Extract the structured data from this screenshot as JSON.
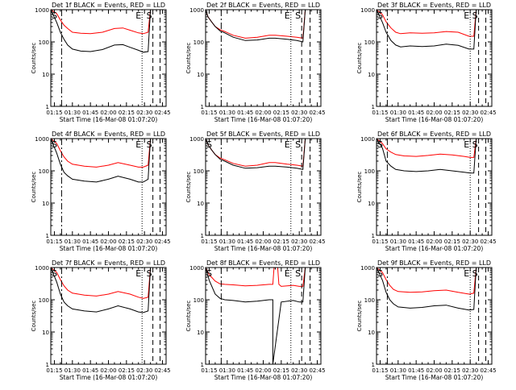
{
  "figure": {
    "background": "#ffffff",
    "axis_color": "#000000"
  },
  "shared": {
    "xlabel": "Start Time (16-Mar-08 01:07:20)",
    "ylabel": "Counts/sec",
    "x_tick_labels": [
      "01:15",
      "01:30",
      "01:45",
      "02:00",
      "02:15",
      "02:30",
      "02:45"
    ],
    "y_tick_labels": [
      "1",
      "10",
      "100",
      "1000"
    ],
    "x_range": [
      "01:12",
      "02:48"
    ],
    "y_range": [
      1,
      1000
    ],
    "y_scale": "log",
    "grid": false,
    "series_colors": {
      "Events": "#000000",
      "LLD": "#ff0000"
    },
    "marker_labels": [
      "S",
      "E",
      "S"
    ]
  },
  "chart_data": [
    {
      "type": "line",
      "title": "Det 1f BLACK = Events, RED = LLD",
      "series": [
        {
          "name": "LLD",
          "color": "#ff0000",
          "x": [
            "01:12",
            "01:17",
            "01:20",
            "01:23",
            "01:26",
            "01:30",
            "01:37",
            "01:45",
            "01:55",
            "02:05",
            "02:12",
            "02:18",
            "02:25",
            "02:29",
            "02:33",
            "02:35"
          ],
          "values": [
            1000,
            750,
            480,
            330,
            260,
            200,
            185,
            180,
            200,
            260,
            270,
            230,
            190,
            180,
            200,
            1000
          ]
        },
        {
          "name": "Events",
          "color": "#000000",
          "x": [
            "01:12",
            "01:17",
            "01:20",
            "01:23",
            "01:26",
            "01:30",
            "01:37",
            "01:45",
            "01:55",
            "02:05",
            "02:12",
            "02:18",
            "02:25",
            "02:29",
            "02:33",
            "02:35"
          ],
          "values": [
            1000,
            400,
            200,
            120,
            80,
            60,
            52,
            50,
            58,
            80,
            82,
            68,
            55,
            48,
            50,
            1000
          ]
        }
      ]
    },
    {
      "type": "line",
      "title": "Det 2f BLACK = Events, RED = LLD",
      "series": [
        {
          "name": "LLD",
          "color": "#ff0000",
          "x": [
            "01:12",
            "01:14",
            "01:17",
            "01:20",
            "01:24",
            "01:28",
            "01:35",
            "01:45",
            "01:55",
            "02:05",
            "02:10",
            "02:20",
            "02:28",
            "02:33",
            "02:35"
          ],
          "values": [
            1000,
            600,
            420,
            300,
            240,
            210,
            160,
            130,
            140,
            160,
            160,
            150,
            140,
            130,
            1000
          ]
        },
        {
          "name": "Events",
          "color": "#000000",
          "x": [
            "01:12",
            "01:14",
            "01:17",
            "01:20",
            "01:24",
            "01:28",
            "01:35",
            "01:45",
            "01:55",
            "02:05",
            "02:10",
            "02:20",
            "02:28",
            "02:33",
            "02:35"
          ],
          "values": [
            1000,
            600,
            420,
            300,
            220,
            190,
            140,
            110,
            115,
            130,
            130,
            120,
            110,
            100,
            1000
          ]
        }
      ]
    },
    {
      "type": "line",
      "title": "Det 3f BLACK = Events, RED = LLD",
      "series": [
        {
          "name": "LLD",
          "color": "#ff0000",
          "x": [
            "01:12",
            "01:17",
            "01:20",
            "01:24",
            "01:28",
            "01:32",
            "01:40",
            "01:50",
            "02:00",
            "02:10",
            "02:20",
            "02:29",
            "02:33",
            "02:35"
          ],
          "values": [
            1000,
            700,
            420,
            270,
            200,
            180,
            190,
            185,
            190,
            210,
            200,
            150,
            150,
            1000
          ]
        },
        {
          "name": "Events",
          "color": "#000000",
          "x": [
            "01:12",
            "01:17",
            "01:20",
            "01:24",
            "01:28",
            "01:32",
            "01:40",
            "01:50",
            "02:00",
            "02:10",
            "02:20",
            "02:29",
            "02:33",
            "02:35"
          ],
          "values": [
            1000,
            400,
            200,
            110,
            80,
            70,
            75,
            72,
            75,
            85,
            78,
            60,
            60,
            1000
          ]
        }
      ]
    },
    {
      "type": "line",
      "title": "Det 4f BLACK = Events, RED = LLD",
      "series": [
        {
          "name": "LLD",
          "color": "#ff0000",
          "x": [
            "01:12",
            "01:17",
            "01:20",
            "01:23",
            "01:26",
            "01:30",
            "01:40",
            "01:50",
            "02:00",
            "02:08",
            "02:18",
            "02:25",
            "02:29",
            "02:33",
            "02:35"
          ],
          "values": [
            1000,
            700,
            420,
            270,
            200,
            160,
            140,
            130,
            150,
            180,
            150,
            130,
            130,
            150,
            1000
          ]
        },
        {
          "name": "Events",
          "color": "#000000",
          "x": [
            "01:12",
            "01:17",
            "01:20",
            "01:23",
            "01:26",
            "01:30",
            "01:40",
            "01:50",
            "02:00",
            "02:08",
            "02:18",
            "02:25",
            "02:29",
            "02:33",
            "02:35"
          ],
          "values": [
            1000,
            350,
            160,
            90,
            70,
            55,
            48,
            45,
            55,
            68,
            55,
            45,
            45,
            55,
            1000
          ]
        }
      ]
    },
    {
      "type": "line",
      "title": "Det 5f BLACK = Events, RED = LLD",
      "series": [
        {
          "name": "LLD",
          "color": "#ff0000",
          "x": [
            "01:12",
            "01:14",
            "01:17",
            "01:20",
            "01:24",
            "01:28",
            "01:35",
            "01:45",
            "01:55",
            "02:05",
            "02:10",
            "02:20",
            "02:28",
            "02:33",
            "02:35"
          ],
          "values": [
            1000,
            650,
            450,
            320,
            250,
            220,
            170,
            140,
            150,
            180,
            180,
            160,
            150,
            140,
            1000
          ]
        },
        {
          "name": "Events",
          "color": "#000000",
          "x": [
            "01:12",
            "01:14",
            "01:17",
            "01:20",
            "01:24",
            "01:28",
            "01:35",
            "01:45",
            "01:55",
            "02:05",
            "02:10",
            "02:20",
            "02:28",
            "02:33",
            "02:35"
          ],
          "values": [
            1000,
            650,
            450,
            320,
            230,
            200,
            150,
            120,
            125,
            140,
            140,
            130,
            120,
            110,
            1000
          ]
        }
      ]
    },
    {
      "type": "line",
      "title": "Det 6f BLACK = Events, RED = LLD",
      "series": [
        {
          "name": "LLD",
          "color": "#ff0000",
          "x": [
            "01:12",
            "01:17",
            "01:20",
            "01:24",
            "01:28",
            "01:35",
            "01:45",
            "01:55",
            "02:05",
            "02:15",
            "02:25",
            "02:30",
            "02:33",
            "02:35"
          ],
          "values": [
            1000,
            700,
            480,
            380,
            320,
            290,
            280,
            300,
            330,
            310,
            280,
            260,
            260,
            1000
          ]
        },
        {
          "name": "Events",
          "color": "#000000",
          "x": [
            "01:12",
            "01:17",
            "01:20",
            "01:24",
            "01:28",
            "01:35",
            "01:45",
            "01:55",
            "02:05",
            "02:15",
            "02:25",
            "02:30",
            "02:33",
            "02:35"
          ],
          "values": [
            1000,
            500,
            200,
            140,
            110,
            100,
            95,
            100,
            110,
            100,
            90,
            85,
            85,
            1000
          ]
        }
      ]
    },
    {
      "type": "line",
      "title": "Det 7f BLACK = Events, RED = LLD",
      "series": [
        {
          "name": "LLD",
          "color": "#ff0000",
          "x": [
            "01:12",
            "01:17",
            "01:20",
            "01:23",
            "01:26",
            "01:30",
            "01:40",
            "01:50",
            "02:00",
            "02:08",
            "02:18",
            "02:25",
            "02:29",
            "02:33",
            "02:35"
          ],
          "values": [
            1000,
            700,
            420,
            270,
            200,
            160,
            140,
            130,
            150,
            180,
            150,
            120,
            110,
            120,
            1000
          ]
        },
        {
          "name": "Events",
          "color": "#000000",
          "x": [
            "01:12",
            "01:17",
            "01:20",
            "01:23",
            "01:26",
            "01:30",
            "01:40",
            "01:50",
            "02:00",
            "02:08",
            "02:18",
            "02:25",
            "02:29",
            "02:33",
            "02:35"
          ],
          "values": [
            1000,
            350,
            150,
            85,
            65,
            52,
            45,
            42,
            52,
            65,
            52,
            42,
            40,
            45,
            1000
          ]
        }
      ]
    },
    {
      "type": "line",
      "title": "Det 8f BLACK = Events, RED = LLD",
      "series": [
        {
          "name": "LLD",
          "color": "#ff0000",
          "x": [
            "01:12",
            "01:15",
            "01:20",
            "01:24",
            "01:28",
            "01:35",
            "01:45",
            "01:55",
            "02:05",
            "02:08",
            "02:09",
            "02:12",
            "02:13",
            "02:15",
            "02:25",
            "02:30",
            "02:33",
            "02:35"
          ],
          "values": [
            1000,
            600,
            380,
            310,
            300,
            290,
            270,
            280,
            300,
            300,
            1000,
            1000,
            300,
            260,
            280,
            260,
            260,
            1000
          ]
        },
        {
          "name": "Events",
          "color": "#000000",
          "x": [
            "01:12",
            "01:15",
            "01:20",
            "01:24",
            "01:28",
            "01:35",
            "01:45",
            "01:55",
            "02:05",
            "02:08",
            "02:08",
            "02:15",
            "02:25",
            "02:30",
            "02:33",
            "02:35"
          ],
          "values": [
            1000,
            400,
            150,
            110,
            100,
            95,
            85,
            90,
            100,
            100,
            1,
            85,
            95,
            85,
            85,
            1000
          ]
        }
      ]
    },
    {
      "type": "line",
      "title": "Det 9f BLACK = Events, RED = LLD",
      "series": [
        {
          "name": "LLD",
          "color": "#ff0000",
          "x": [
            "01:12",
            "01:17",
            "01:20",
            "01:23",
            "01:26",
            "01:30",
            "01:40",
            "01:50",
            "02:00",
            "02:10",
            "02:20",
            "02:29",
            "02:33",
            "02:35"
          ],
          "values": [
            1000,
            700,
            420,
            280,
            210,
            180,
            170,
            175,
            190,
            200,
            170,
            150,
            160,
            1000
          ]
        },
        {
          "name": "Events",
          "color": "#000000",
          "x": [
            "01:12",
            "01:17",
            "01:20",
            "01:23",
            "01:26",
            "01:30",
            "01:40",
            "01:50",
            "02:00",
            "02:10",
            "02:20",
            "02:29",
            "02:33",
            "02:35"
          ],
          "values": [
            1000,
            400,
            170,
            100,
            75,
            60,
            55,
            58,
            65,
            68,
            55,
            48,
            50,
            1000
          ]
        }
      ]
    }
  ],
  "vertical_markers": [
    {
      "panel": 0,
      "lines": [
        {
          "x": "01:21",
          "style": "dashdot"
        },
        {
          "x": "02:28",
          "style": "dotted",
          "label": "E"
        },
        {
          "x": "02:37",
          "style": "dashed",
          "label": "S"
        },
        {
          "x": "02:43",
          "style": "dashed"
        }
      ],
      "start_label": "S"
    },
    {
      "panel": 1,
      "lines": [
        {
          "x": "01:25",
          "style": "dashdot"
        },
        {
          "x": "02:23",
          "style": "dotted",
          "label": "E"
        },
        {
          "x": "02:32",
          "style": "dashed",
          "label": "S"
        },
        {
          "x": "02:39",
          "style": "dashed"
        }
      ],
      "start_label": ""
    },
    {
      "panel": 2,
      "lines": [
        {
          "x": "01:21",
          "style": "dashdot"
        },
        {
          "x": "02:30",
          "style": "dotted",
          "label": "E"
        },
        {
          "x": "02:37",
          "style": "dashed",
          "label": "S"
        },
        {
          "x": "02:43",
          "style": "dashed"
        }
      ],
      "start_label": "S"
    },
    {
      "panel": 3,
      "lines": [
        {
          "x": "01:21",
          "style": "dashdot"
        },
        {
          "x": "02:28",
          "style": "dotted",
          "label": "E"
        },
        {
          "x": "02:37",
          "style": "dashed",
          "label": "S"
        },
        {
          "x": "02:43",
          "style": "dashed"
        }
      ],
      "start_label": "S"
    },
    {
      "panel": 4,
      "lines": [
        {
          "x": "01:25",
          "style": "dashdot"
        },
        {
          "x": "02:23",
          "style": "dotted",
          "label": "E"
        },
        {
          "x": "02:32",
          "style": "dashed",
          "label": "S"
        },
        {
          "x": "02:39",
          "style": "dashed"
        }
      ],
      "start_label": "S"
    },
    {
      "panel": 5,
      "lines": [
        {
          "x": "01:21",
          "style": "dashdot"
        },
        {
          "x": "02:30",
          "style": "dotted",
          "label": "E"
        },
        {
          "x": "02:37",
          "style": "dashed",
          "label": "S"
        },
        {
          "x": "02:43",
          "style": "dashed"
        }
      ],
      "start_label": "S"
    },
    {
      "panel": 6,
      "lines": [
        {
          "x": "01:21",
          "style": "dashdot"
        },
        {
          "x": "02:28",
          "style": "dotted",
          "label": "E"
        },
        {
          "x": "02:37",
          "style": "dashed",
          "label": "S"
        },
        {
          "x": "02:43",
          "style": "dashed"
        }
      ],
      "start_label": "S"
    },
    {
      "panel": 7,
      "lines": [
        {
          "x": "01:25",
          "style": "dashdot"
        },
        {
          "x": "02:23",
          "style": "dotted",
          "label": "E"
        },
        {
          "x": "02:32",
          "style": "dashed",
          "label": "S"
        },
        {
          "x": "02:39",
          "style": "dashed"
        }
      ],
      "start_label": "S"
    },
    {
      "panel": 8,
      "lines": [
        {
          "x": "01:21",
          "style": "dashdot"
        },
        {
          "x": "02:30",
          "style": "dotted",
          "label": "E"
        },
        {
          "x": "02:37",
          "style": "dashed",
          "label": "S"
        },
        {
          "x": "02:43",
          "style": "dashed"
        }
      ],
      "start_label": "S"
    }
  ]
}
